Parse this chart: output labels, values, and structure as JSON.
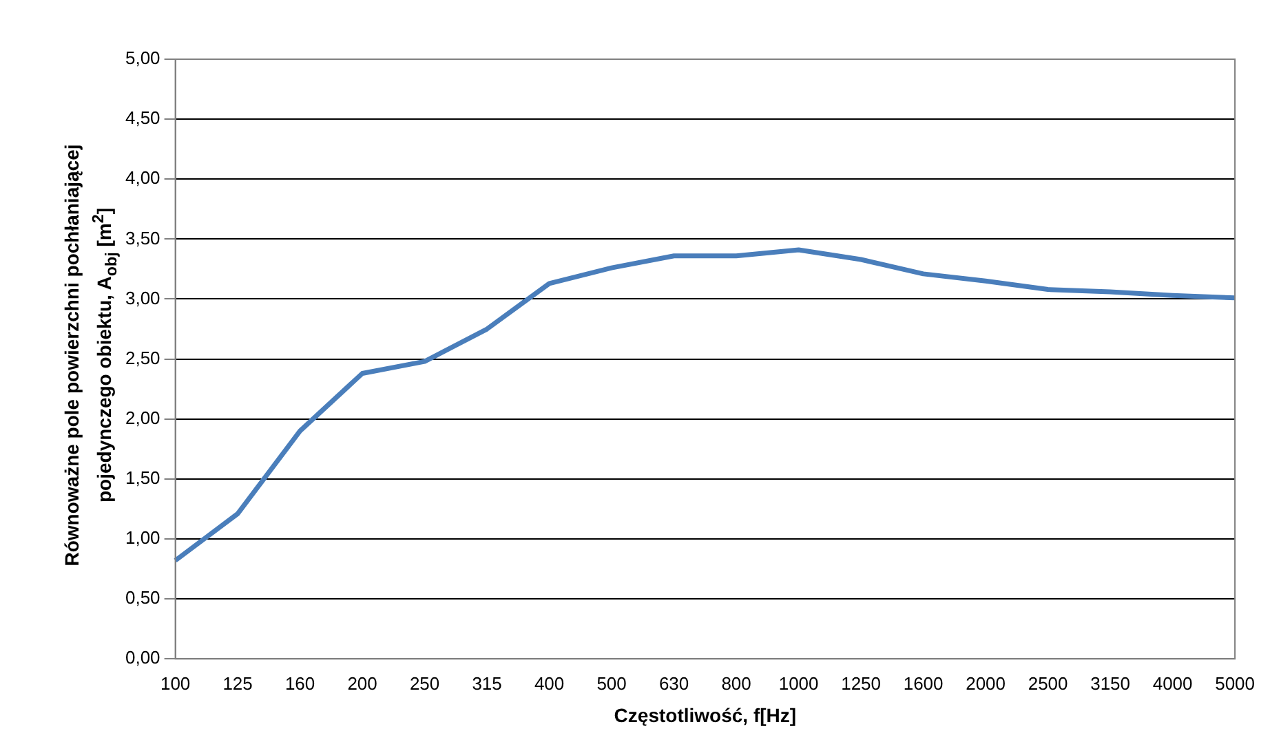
{
  "chart_data": {
    "type": "line",
    "xlabel": "Częstotliwość, f[Hz]",
    "ylabel": "Równoważne pole powierzchni pochłaniającej pojedynczego obiektu, A$_{obj}$ [m$^{2}$]",
    "categories": [
      "100",
      "125",
      "160",
      "200",
      "250",
      "315",
      "400",
      "500",
      "630",
      "800",
      "1000",
      "1250",
      "1600",
      "2000",
      "2500",
      "3150",
      "4000",
      "5000"
    ],
    "series": [
      {
        "color": "#4a7ebb",
        "values": [
          0.82,
          1.21,
          1.9,
          2.38,
          2.48,
          2.75,
          3.13,
          3.26,
          3.36,
          3.36,
          3.41,
          3.33,
          3.21,
          3.15,
          3.08,
          3.06,
          3.03,
          3.01
        ]
      }
    ],
    "ylim": [
      0,
      5
    ],
    "yticks": [
      {
        "value": 0,
        "label": "0,00"
      },
      {
        "value": 0.5,
        "label": "0,50"
      },
      {
        "value": 1,
        "label": "1,00"
      },
      {
        "value": 1.5,
        "label": "1,50"
      },
      {
        "value": 2,
        "label": "2,00"
      },
      {
        "value": 2.5,
        "label": "2,50"
      },
      {
        "value": 3,
        "label": "3,00"
      },
      {
        "value": 3.5,
        "label": "3,50"
      },
      {
        "value": 4,
        "label": "4,00"
      },
      {
        "value": 4.5,
        "label": "4,50"
      },
      {
        "value": 5,
        "label": "5,00"
      }
    ],
    "grid": "y",
    "legend": false,
    "marker": "none",
    "line_style": "solid"
  }
}
